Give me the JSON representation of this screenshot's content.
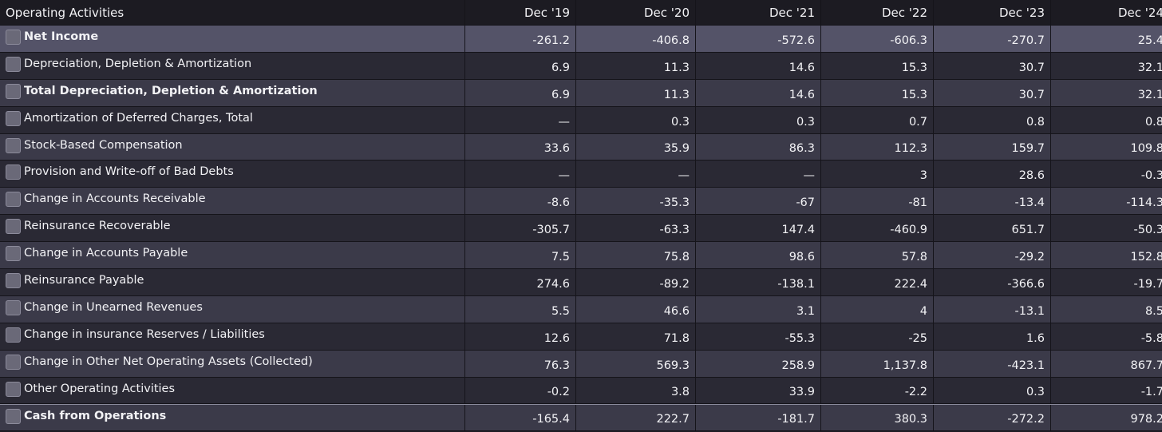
{
  "table": {
    "header": {
      "title": "Operating Activities",
      "periods": [
        "Dec '19",
        "Dec '20",
        "Dec '21",
        "Dec '22",
        "Dec '23",
        "Dec '24"
      ]
    },
    "rows": [
      {
        "label": "Net Income",
        "bold": true,
        "highlight": true,
        "values": [
          "-261.2",
          "-406.8",
          "-572.6",
          "-606.3",
          "-270.7",
          "25.4"
        ]
      },
      {
        "label": "Depreciation, Depletion & Amortization",
        "bold": false,
        "values": [
          "6.9",
          "11.3",
          "14.6",
          "15.3",
          "30.7",
          "32.1"
        ]
      },
      {
        "label": "Total Depreciation, Depletion & Amortization",
        "bold": true,
        "values": [
          "6.9",
          "11.3",
          "14.6",
          "15.3",
          "30.7",
          "32.1"
        ]
      },
      {
        "label": "Amortization of Deferred Charges, Total",
        "bold": false,
        "values": [
          "—",
          "0.3",
          "0.3",
          "0.7",
          "0.8",
          "0.8"
        ]
      },
      {
        "label": "Stock-Based Compensation",
        "bold": false,
        "values": [
          "33.6",
          "35.9",
          "86.3",
          "112.3",
          "159.7",
          "109.8"
        ]
      },
      {
        "label": "Provision and Write-off of Bad Debts",
        "bold": false,
        "values": [
          "—",
          "—",
          "—",
          "3",
          "28.6",
          "-0.3"
        ]
      },
      {
        "label": "Change in Accounts Receivable",
        "bold": false,
        "values": [
          "-8.6",
          "-35.3",
          "-67",
          "-81",
          "-13.4",
          "-114.3"
        ]
      },
      {
        "label": "Reinsurance Recoverable",
        "bold": false,
        "values": [
          "-305.7",
          "-63.3",
          "147.4",
          "-460.9",
          "651.7",
          "-50.3"
        ]
      },
      {
        "label": "Change in Accounts Payable",
        "bold": false,
        "values": [
          "7.5",
          "75.8",
          "98.6",
          "57.8",
          "-29.2",
          "152.8"
        ]
      },
      {
        "label": "Reinsurance Payable",
        "bold": false,
        "values": [
          "274.6",
          "-89.2",
          "-138.1",
          "222.4",
          "-366.6",
          "-19.7"
        ]
      },
      {
        "label": "Change in Unearned Revenues",
        "bold": false,
        "values": [
          "5.5",
          "46.6",
          "3.1",
          "4",
          "-13.1",
          "8.5"
        ]
      },
      {
        "label": "Change in insurance Reserves / Liabilities",
        "bold": false,
        "values": [
          "12.6",
          "71.8",
          "-55.3",
          "-25",
          "1.6",
          "-5.8"
        ]
      },
      {
        "label": "Change in Other Net Operating Assets (Collected)",
        "bold": false,
        "values": [
          "76.3",
          "569.3",
          "258.9",
          "1,137.8",
          "-423.1",
          "867.7"
        ]
      },
      {
        "label": "Other Operating Activities",
        "bold": false,
        "values": [
          "-0.2",
          "3.8",
          "33.9",
          "-2.2",
          "0.3",
          "-1.7"
        ]
      },
      {
        "label": "Cash from Operations",
        "bold": true,
        "values": [
          "-165.4",
          "222.7",
          "-181.7",
          "380.3",
          "-272.2",
          "978.2"
        ]
      }
    ]
  }
}
